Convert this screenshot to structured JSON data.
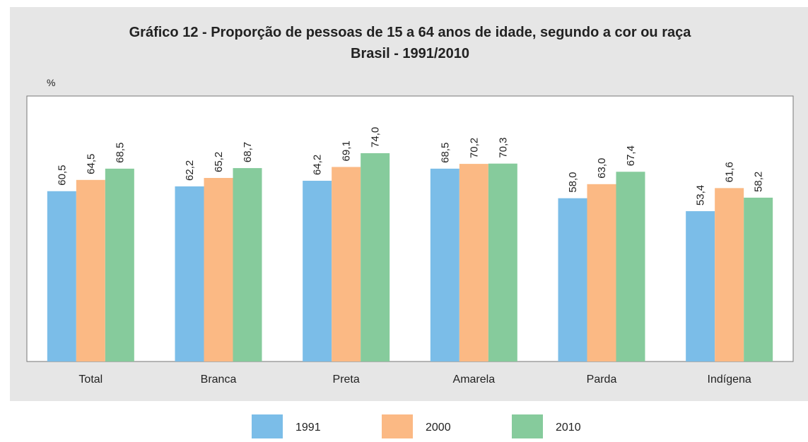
{
  "chart_data": {
    "type": "bar",
    "title": "Gráfico 12 - Proporção de pessoas de 15 a 64 anos de idade, segundo a cor ou raça",
    "subtitle": "Brasil - 1991/2010",
    "y_label": "%",
    "categories": [
      "Total",
      "Branca",
      "Preta",
      "Amarela",
      "Parda",
      "Indígena"
    ],
    "series": [
      {
        "name": "1991",
        "color": "#7bbde8",
        "values": [
          60.5,
          62.2,
          64.2,
          68.5,
          58.0,
          53.4
        ],
        "value_labels": [
          "60,5",
          "62,2",
          "64,2",
          "68,5",
          "58,0",
          "53,4"
        ]
      },
      {
        "name": "2000",
        "color": "#fbb984",
        "values": [
          64.5,
          65.2,
          69.1,
          70.2,
          63.0,
          61.6
        ],
        "value_labels": [
          "64,5",
          "65,2",
          "69,1",
          "70,2",
          "63,0",
          "61,6"
        ]
      },
      {
        "name": "2010",
        "color": "#86cb9c",
        "values": [
          68.5,
          68.7,
          74.0,
          70.3,
          67.4,
          58.2
        ],
        "value_labels": [
          "68,5",
          "68,7",
          "74,0",
          "70,3",
          "67,4",
          "58,2"
        ]
      }
    ],
    "ylim": [
      0,
      94.3
    ],
    "legend": "bottom"
  }
}
